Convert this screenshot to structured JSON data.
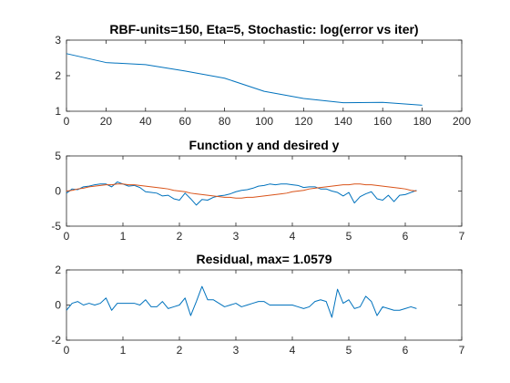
{
  "chart_data": [
    {
      "type": "line",
      "title": "RBF-units=150, Eta=5, Stochastic: log(error vs iter)",
      "xlabel": "",
      "ylabel": "",
      "xlim": [
        0,
        200
      ],
      "ylim": [
        1,
        3
      ],
      "xticks": [
        0,
        20,
        40,
        60,
        80,
        100,
        120,
        140,
        160,
        180,
        200
      ],
      "yticks": [
        1,
        2,
        3
      ],
      "grid": false,
      "series": [
        {
          "color": "#0072BD",
          "x": [
            0,
            20,
            40,
            60,
            80,
            100,
            120,
            140,
            160,
            180
          ],
          "y": [
            2.62,
            2.37,
            2.31,
            2.13,
            1.93,
            1.56,
            1.36,
            1.24,
            1.25,
            1.17
          ]
        }
      ]
    },
    {
      "type": "line",
      "title": "Function y and desired y",
      "xlabel": "",
      "ylabel": "",
      "xlim": [
        0,
        7
      ],
      "ylim": [
        -5,
        5
      ],
      "xticks": [
        0,
        1,
        2,
        3,
        4,
        5,
        6,
        7
      ],
      "yticks": [
        -5,
        0,
        5
      ],
      "grid": false,
      "series": [
        {
          "color": "#0072BD",
          "x": [
            0.0,
            0.1,
            0.2,
            0.3,
            0.4,
            0.5,
            0.6,
            0.7,
            0.8,
            0.9,
            1.0,
            1.1,
            1.2,
            1.3,
            1.4,
            1.5,
            1.6,
            1.7,
            1.8,
            1.9,
            2.0,
            2.1,
            2.2,
            2.3,
            2.4,
            2.5,
            2.6,
            2.7,
            2.8,
            2.9,
            3.0,
            3.1,
            3.2,
            3.3,
            3.4,
            3.5,
            3.6,
            3.7,
            3.8,
            3.9,
            4.0,
            4.1,
            4.2,
            4.3,
            4.4,
            4.5,
            4.6,
            4.7,
            4.8,
            4.9,
            5.0,
            5.1,
            5.2,
            5.3,
            5.4,
            5.5,
            5.6,
            5.7,
            5.8,
            5.9,
            6.0,
            6.1,
            6.2
          ],
          "y": [
            -0.3,
            0.3,
            0.2,
            0.6,
            0.7,
            0.9,
            1.0,
            1.0,
            0.6,
            1.3,
            1.0,
            0.7,
            0.8,
            0.5,
            -0.1,
            -0.2,
            -0.3,
            -0.7,
            -0.6,
            -1.1,
            -1.3,
            -0.3,
            -1.1,
            -2.0,
            -1.2,
            -1.3,
            -0.9,
            -0.7,
            -0.6,
            -0.4,
            -0.1,
            0.1,
            0.2,
            0.4,
            0.7,
            0.8,
            1.0,
            0.9,
            1.0,
            1.0,
            0.9,
            0.8,
            0.5,
            0.6,
            0.6,
            0.3,
            0.3,
            0.0,
            -0.2,
            -0.7,
            -0.2,
            -1.7,
            -0.8,
            -0.4,
            -0.1,
            -1.1,
            -1.3,
            -0.6,
            -1.5,
            -0.6,
            -0.5,
            -0.2,
            0.1
          ]
        },
        {
          "color": "#D95319",
          "x": [
            0.0,
            0.1,
            0.2,
            0.3,
            0.4,
            0.5,
            0.6,
            0.7,
            0.8,
            0.9,
            1.0,
            1.1,
            1.2,
            1.3,
            1.4,
            1.5,
            1.6,
            1.7,
            1.8,
            1.9,
            2.0,
            2.1,
            2.2,
            2.3,
            2.4,
            2.5,
            2.6,
            2.7,
            2.8,
            2.9,
            3.0,
            3.1,
            3.2,
            3.3,
            3.4,
            3.5,
            3.6,
            3.7,
            3.8,
            3.9,
            4.0,
            4.1,
            4.2,
            4.3,
            4.4,
            4.5,
            4.6,
            4.7,
            4.8,
            4.9,
            5.0,
            5.1,
            5.2,
            5.3,
            5.4,
            5.5,
            5.6,
            5.7,
            5.8,
            5.9,
            6.0,
            6.1,
            6.2
          ],
          "y": [
            0.0,
            0.1,
            0.3,
            0.4,
            0.6,
            0.7,
            0.8,
            0.9,
            0.9,
            1.0,
            1.0,
            0.9,
            0.9,
            0.8,
            0.7,
            0.6,
            0.5,
            0.4,
            0.3,
            0.1,
            -0.0,
            -0.1,
            -0.3,
            -0.4,
            -0.5,
            -0.6,
            -0.7,
            -0.8,
            -0.9,
            -0.9,
            -1.0,
            -1.0,
            -0.9,
            -0.9,
            -0.8,
            -0.7,
            -0.6,
            -0.5,
            -0.4,
            -0.3,
            -0.1,
            0.0,
            0.1,
            0.3,
            0.4,
            0.5,
            0.6,
            0.7,
            0.8,
            0.9,
            0.9,
            1.0,
            1.0,
            0.9,
            0.9,
            0.8,
            0.7,
            0.6,
            0.5,
            0.4,
            0.3,
            0.1,
            -0.0
          ]
        }
      ]
    },
    {
      "type": "line",
      "title": "Residual, max= 1.0579",
      "xlabel": "",
      "ylabel": "",
      "xlim": [
        0,
        7
      ],
      "ylim": [
        -2,
        2
      ],
      "xticks": [
        0,
        1,
        2,
        3,
        4,
        5,
        6,
        7
      ],
      "yticks": [
        -2,
        0,
        2
      ],
      "grid": false,
      "series": [
        {
          "color": "#0072BD",
          "x": [
            0.0,
            0.1,
            0.2,
            0.3,
            0.4,
            0.5,
            0.6,
            0.7,
            0.8,
            0.9,
            1.0,
            1.1,
            1.2,
            1.3,
            1.4,
            1.5,
            1.6,
            1.7,
            1.8,
            1.9,
            2.0,
            2.1,
            2.2,
            2.3,
            2.4,
            2.5,
            2.6,
            2.7,
            2.8,
            2.9,
            3.0,
            3.1,
            3.2,
            3.3,
            3.4,
            3.5,
            3.6,
            3.7,
            3.8,
            3.9,
            4.0,
            4.1,
            4.2,
            4.3,
            4.4,
            4.5,
            4.6,
            4.7,
            4.8,
            4.9,
            5.0,
            5.1,
            5.2,
            5.3,
            5.4,
            5.5,
            5.6,
            5.7,
            5.8,
            5.9,
            6.0,
            6.1,
            6.2
          ],
          "y": [
            -0.3,
            0.1,
            0.2,
            -0.0,
            0.1,
            0.0,
            0.1,
            0.4,
            -0.3,
            0.1,
            0.1,
            0.1,
            0.1,
            0.0,
            0.3,
            -0.1,
            -0.1,
            0.2,
            -0.2,
            -0.1,
            0.0,
            0.4,
            -0.6,
            0.2,
            1.06,
            0.3,
            0.3,
            0.1,
            -0.1,
            0.0,
            0.1,
            -0.1,
            -0.0,
            0.1,
            0.2,
            0.2,
            0.0,
            0.0,
            -0.0,
            0.0,
            0.0,
            -0.1,
            -0.2,
            -0.1,
            0.2,
            0.3,
            0.2,
            -0.7,
            0.9,
            0.1,
            0.3,
            -0.2,
            -0.1,
            0.5,
            0.2,
            -0.6,
            -0.1,
            -0.2,
            -0.3,
            -0.3,
            -0.2,
            -0.1,
            -0.2
          ]
        }
      ]
    }
  ]
}
